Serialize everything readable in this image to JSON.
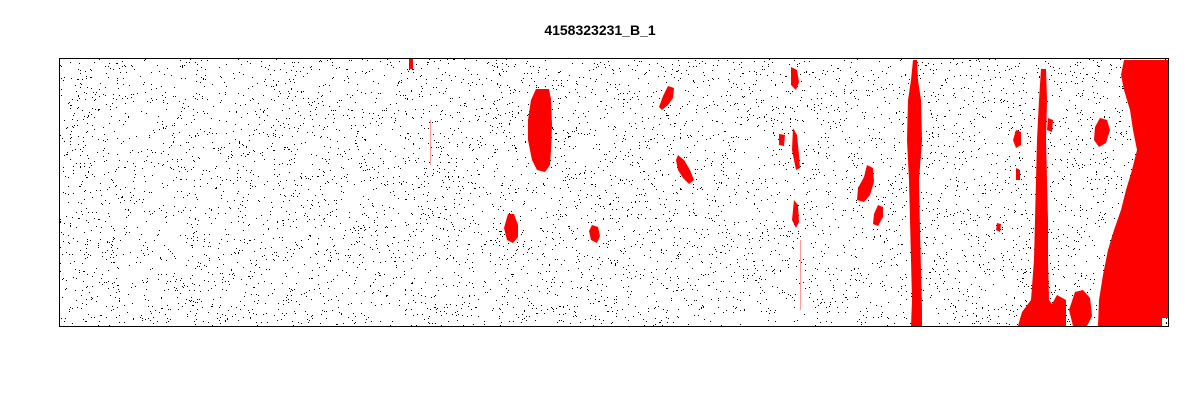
{
  "chart_data": {
    "type": "heatmap",
    "title": "4158323231_B_1",
    "xlabel": "",
    "ylabel": "",
    "axes_visible": false,
    "colors": {
      "background": "#ffffff",
      "defect": "#ff0000",
      "speckle": "#000000",
      "frame": "#000000"
    },
    "regions": [
      {
        "name": "red-column-1",
        "shape": "column"
      },
      {
        "name": "red-column-2",
        "shape": "column"
      },
      {
        "name": "red-right-edge",
        "shape": "mass"
      },
      {
        "name": "red-blob-large",
        "shape": "blob"
      }
    ]
  }
}
